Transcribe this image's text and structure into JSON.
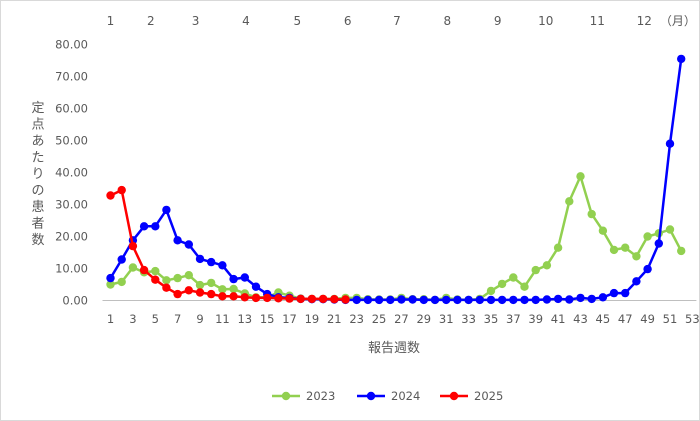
{
  "chart_data": {
    "type": "line",
    "title": "",
    "xlabel": "報告週数",
    "ylabel": "定点あたりの患者数",
    "ylim": [
      0,
      80
    ],
    "y_ticks": [
      "0.00",
      "10.00",
      "20.00",
      "30.00",
      "40.00",
      "50.00",
      "60.00",
      "70.00",
      "80.00"
    ],
    "x_ticks": [
      "1",
      "3",
      "5",
      "7",
      "9",
      "11",
      "13",
      "15",
      "17",
      "19",
      "21",
      "23",
      "25",
      "27",
      "29",
      "31",
      "33",
      "35",
      "37",
      "39",
      "41",
      "43",
      "45",
      "47",
      "49",
      "51",
      "53"
    ],
    "months": [
      {
        "label": "1",
        "week": 1
      },
      {
        "label": "2",
        "week": 4.6
      },
      {
        "label": "3",
        "week": 8.6
      },
      {
        "label": "4",
        "week": 13.1
      },
      {
        "label": "5",
        "week": 17.7
      },
      {
        "label": "6",
        "week": 22.2
      },
      {
        "label": "7",
        "week": 26.6
      },
      {
        "label": "8",
        "week": 31.1
      },
      {
        "label": "9",
        "week": 35.6
      },
      {
        "label": "10",
        "week": 39.9
      },
      {
        "label": "11",
        "week": 44.5
      },
      {
        "label": "12",
        "week": 48.7
      },
      {
        "label": "（月）",
        "week": 51.7
      }
    ],
    "grid": false,
    "legend_position": "bottom",
    "series": [
      {
        "name": "2023",
        "color": "#92d050",
        "x": [
          1,
          2,
          3,
          4,
          5,
          6,
          7,
          8,
          9,
          10,
          11,
          12,
          13,
          14,
          15,
          16,
          17,
          18,
          19,
          20,
          21,
          22,
          23,
          24,
          25,
          26,
          27,
          28,
          29,
          30,
          31,
          32,
          33,
          34,
          35,
          36,
          37,
          38,
          39,
          40,
          41,
          42,
          43,
          44,
          45,
          46,
          47,
          48,
          49,
          50,
          51,
          52
        ],
        "values": [
          5.0,
          5.8,
          10.3,
          8.8,
          9.2,
          6.3,
          7.0,
          7.9,
          4.8,
          5.5,
          3.5,
          3.6,
          2.2,
          1.0,
          1.0,
          2.5,
          1.5,
          0.6,
          0.5,
          0.5,
          0.5,
          0.8,
          0.8,
          0.4,
          0.3,
          0.3,
          0.8,
          0.4,
          0.4,
          0.2,
          0.8,
          0.3,
          0.2,
          0.5,
          3.0,
          5.2,
          7.2,
          4.3,
          9.5,
          11.0,
          16.5,
          31.0,
          38.8,
          27.0,
          21.8,
          15.8,
          16.5,
          13.8,
          20.0,
          21.0,
          22.2,
          15.5
        ]
      },
      {
        "name": "2024",
        "color": "#0000ff",
        "x": [
          1,
          2,
          3,
          4,
          5,
          6,
          7,
          8,
          9,
          10,
          11,
          12,
          13,
          14,
          15,
          16,
          17,
          18,
          19,
          20,
          21,
          22,
          23,
          24,
          25,
          26,
          27,
          28,
          29,
          30,
          31,
          32,
          33,
          34,
          35,
          36,
          37,
          38,
          39,
          40,
          41,
          42,
          43,
          44,
          45,
          46,
          47,
          48,
          49,
          50,
          51,
          52
        ],
        "values": [
          7.0,
          12.8,
          18.8,
          23.2,
          23.2,
          28.3,
          18.8,
          17.5,
          13.0,
          12.0,
          11.0,
          6.7,
          7.2,
          4.3,
          2.0,
          1.0,
          0.8,
          0.5,
          0.4,
          0.4,
          0.3,
          0.2,
          0.2,
          0.2,
          0.2,
          0.2,
          0.3,
          0.3,
          0.2,
          0.2,
          0.2,
          0.2,
          0.2,
          0.2,
          0.2,
          0.2,
          0.2,
          0.2,
          0.2,
          0.3,
          0.5,
          0.3,
          0.8,
          0.5,
          1.0,
          2.3,
          2.3,
          6.0,
          9.8,
          17.8,
          49.0,
          75.5
        ]
      },
      {
        "name": "2025",
        "color": "#ff0000",
        "x": [
          1,
          2,
          3,
          4,
          5,
          6,
          7,
          8,
          9,
          10,
          11,
          12,
          13,
          14,
          15,
          16,
          17,
          18,
          19,
          20,
          21,
          22
        ],
        "values": [
          32.8,
          34.5,
          17.0,
          9.5,
          6.5,
          4.0,
          2.0,
          3.2,
          2.5,
          2.0,
          1.3,
          1.3,
          1.0,
          0.8,
          0.8,
          0.7,
          0.6,
          0.5,
          0.5,
          0.5,
          0.4,
          0.3
        ]
      }
    ]
  }
}
